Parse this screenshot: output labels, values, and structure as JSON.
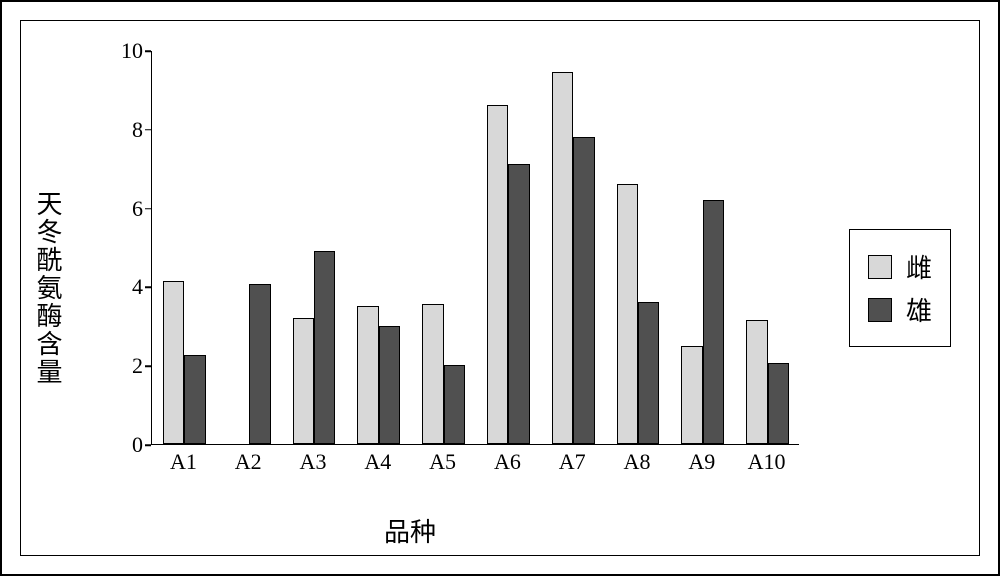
{
  "chart": {
    "type": "bar",
    "ylabel": "天冬酰氨酶含量",
    "xlabel": "品种",
    "ylim": [
      0,
      10
    ],
    "ytick_step": 2,
    "yticks": [
      0,
      2,
      4,
      6,
      8,
      10
    ],
    "categories": [
      "A1",
      "A2",
      "A3",
      "A4",
      "A5",
      "A6",
      "A7",
      "A8",
      "A9",
      "A10"
    ],
    "series": [
      {
        "name": "雌",
        "color": "#d8d8d8",
        "values": [
          4.15,
          0.0,
          3.2,
          3.5,
          3.55,
          8.6,
          9.45,
          6.6,
          2.5,
          3.15
        ]
      },
      {
        "name": "雄",
        "color": "#505050",
        "values": [
          2.25,
          4.05,
          4.9,
          3.0,
          2.0,
          7.1,
          7.8,
          3.6,
          6.2,
          2.05
        ]
      }
    ],
    "bar_width_ratio": 0.33,
    "group_gap_ratio": 0.34,
    "background_color": "#ffffff",
    "axis_color": "#000000",
    "label_fontsize": 26,
    "tick_fontsize": 22,
    "legend_fontsize": 26,
    "border_color": "#000000"
  }
}
